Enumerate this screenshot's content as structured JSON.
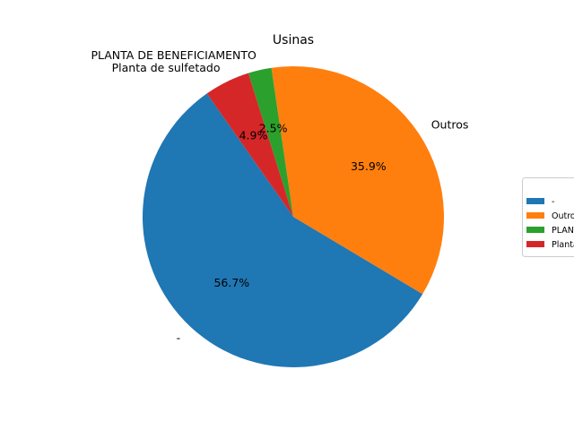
{
  "chart_data": {
    "type": "pie",
    "title": "Usinas",
    "categories": [
      "-",
      "Outros",
      "PLANTA DE BENEFICIAMENTO",
      "Planta de sulfetado"
    ],
    "values": [
      56.7,
      35.9,
      2.5,
      4.9
    ],
    "labels_pct": [
      "56.7%",
      "35.9%",
      "2.5%",
      "4.9%"
    ],
    "colors": [
      "#1f77b4",
      "#ff7f0e",
      "#2ca02c",
      "#d62728"
    ],
    "legend": {
      "placement": "right",
      "entries": [
        "-",
        "Outros",
        "PLANTA DE BENEFICIAMENTO",
        "Planta de sulfetado"
      ]
    }
  }
}
